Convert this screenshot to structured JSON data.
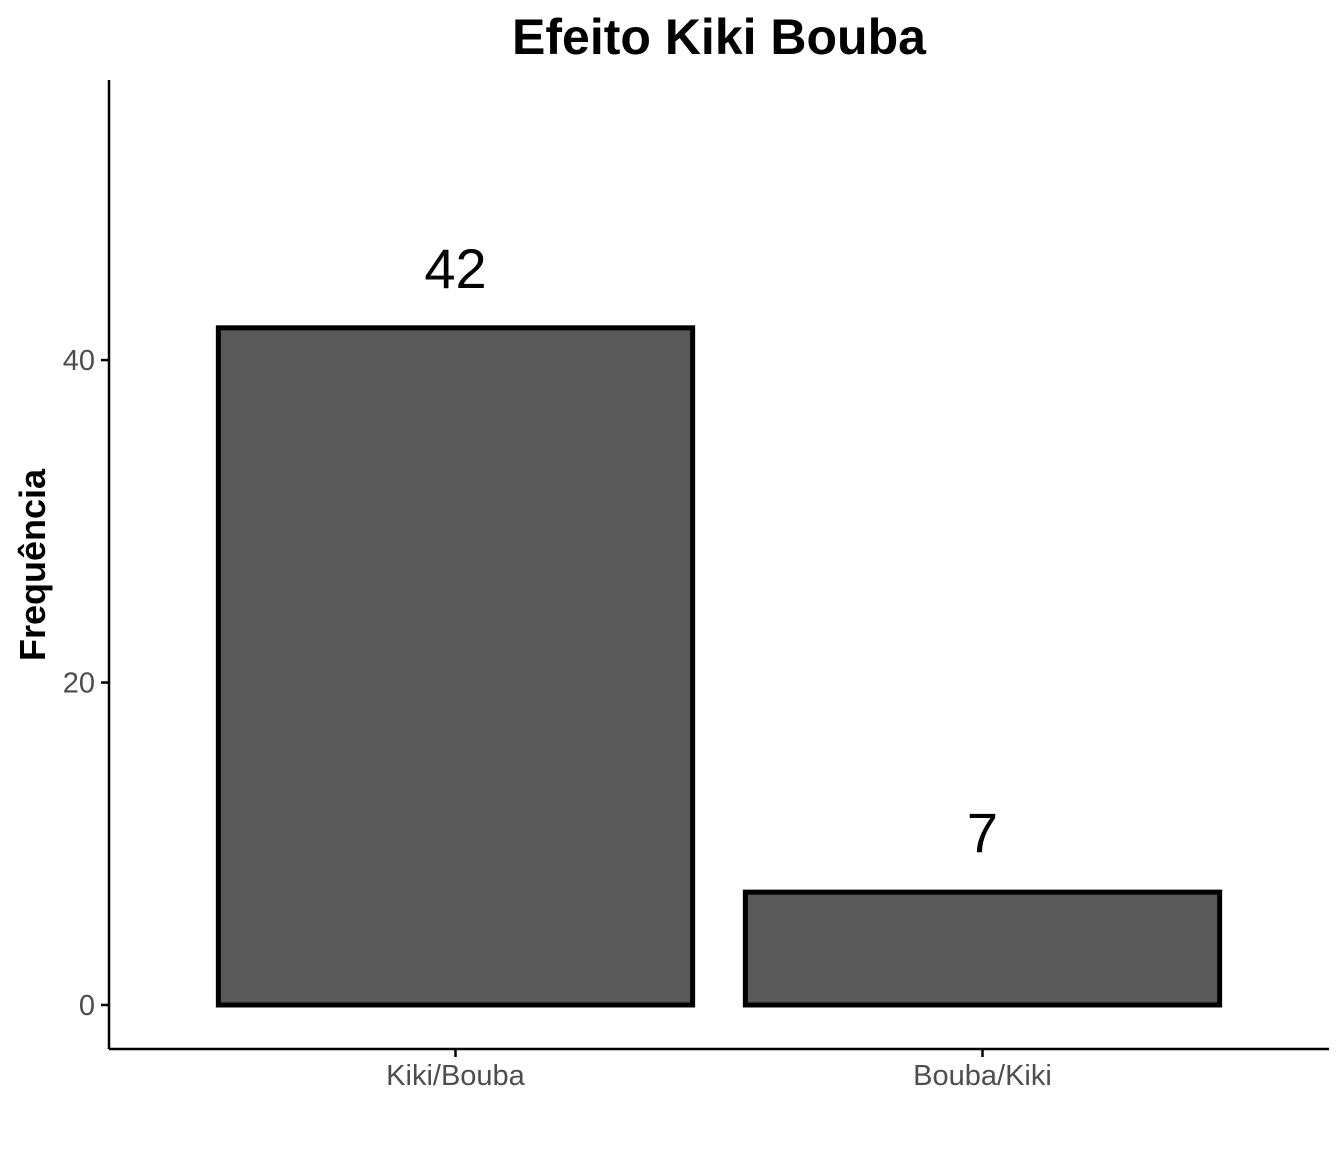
{
  "chart_data": {
    "type": "bar",
    "title": "Efeito Kiki Bouba",
    "xlabel": "",
    "ylabel": "Frequência",
    "categories": [
      "Kiki/Bouba",
      "Bouba/Kiki"
    ],
    "values": [
      42,
      7
    ],
    "data_labels": [
      "42",
      "7"
    ],
    "ylim": [
      -2.73,
      57.37
    ],
    "yticks": [
      0,
      20,
      40
    ],
    "ytick_labels": [
      "0",
      "20",
      "40"
    ],
    "grid": false,
    "legend": "none",
    "bar_fill": "#595959",
    "bar_outline": "#000000"
  }
}
